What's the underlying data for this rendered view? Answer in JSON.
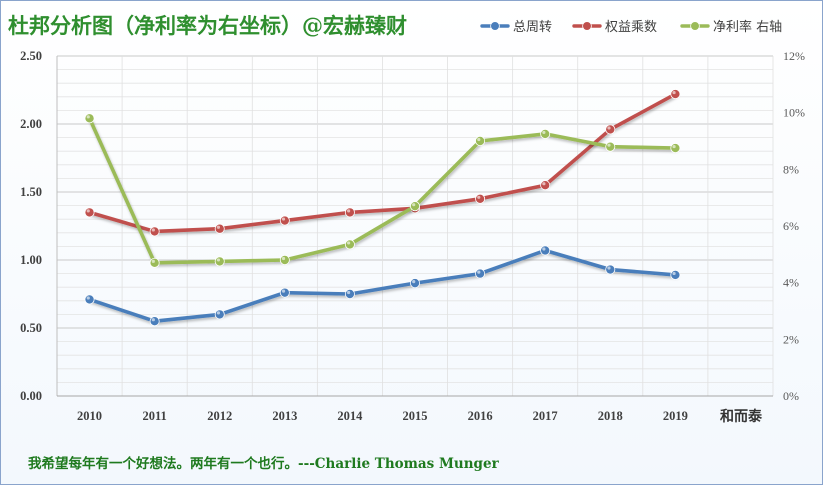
{
  "chart_data": {
    "type": "line",
    "title": "杜邦分析图（净利率为右坐标）@宏赫臻财",
    "author_label": "和而泰",
    "quote": "我希望每年有一个好想法。两年有一个也行。---Charlie Thomas  Munger",
    "categories": [
      "2010",
      "2011",
      "2012",
      "2013",
      "2014",
      "2015",
      "2016",
      "2017",
      "2018",
      "2019"
    ],
    "y_left": {
      "min": 0,
      "max": 2.5,
      "step": 0.5,
      "ticks": [
        "0.00",
        "0.50",
        "1.00",
        "1.50",
        "2.00",
        "2.50"
      ]
    },
    "y_right": {
      "min": 0,
      "max": 12,
      "step": 2,
      "ticks": [
        "0%",
        "2%",
        "4%",
        "6%",
        "8%",
        "10%",
        "12%"
      ]
    },
    "grid": true,
    "legend_position": "top-right",
    "series": [
      {
        "name": "总周转",
        "axis": "left",
        "color": "#4a7ebb",
        "values": [
          0.71,
          0.55,
          0.6,
          0.76,
          0.75,
          0.83,
          0.9,
          1.07,
          0.93,
          0.89
        ]
      },
      {
        "name": "权益乘数",
        "axis": "left",
        "color": "#c0504d",
        "values": [
          1.35,
          1.21,
          1.23,
          1.29,
          1.35,
          1.38,
          1.45,
          1.55,
          1.96,
          2.22
        ]
      },
      {
        "name": "净利率 右轴",
        "axis": "right",
        "color": "#9bbb59",
        "values": [
          9.8,
          4.7,
          4.75,
          4.8,
          5.35,
          6.7,
          9.0,
          9.25,
          8.8,
          8.75
        ]
      }
    ]
  }
}
